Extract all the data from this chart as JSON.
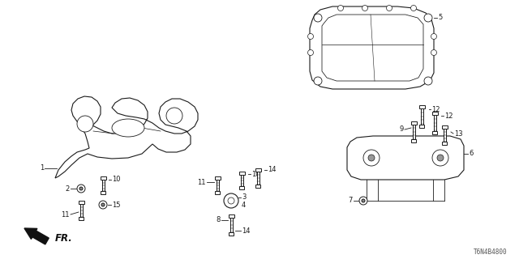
{
  "background_color": "#ffffff",
  "part_number_text": "T6N4B4800",
  "figsize": [
    6.4,
    3.2
  ],
  "dpi": 100,
  "line_color": "#1a1a1a",
  "label_fontsize": 6.0
}
